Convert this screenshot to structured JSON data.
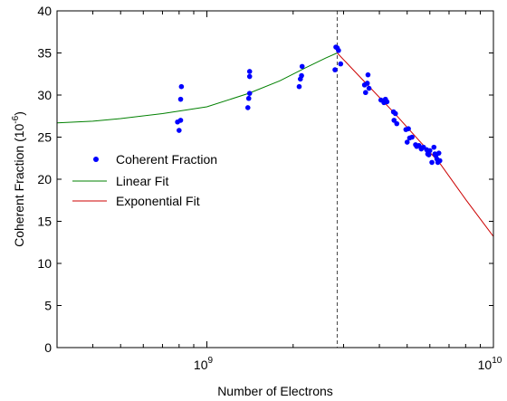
{
  "chart_data": {
    "type": "scatter",
    "xlabel": "Number of Electrons",
    "ylabel_prefix": "Coherent Fraction  (10",
    "ylabel_exp": "-6",
    "ylabel_suffix": ")",
    "x_scale": "log",
    "xlim": [
      300000000,
      10000000000
    ],
    "ylim": [
      0,
      40
    ],
    "grid": false,
    "x_ticks": [
      {
        "value": 1000000000,
        "base": "10",
        "exp": "9"
      },
      {
        "value": 10000000000,
        "base": "10",
        "exp": "10"
      }
    ],
    "y_ticks": [
      0,
      5,
      10,
      15,
      20,
      25,
      30,
      35,
      40
    ],
    "threshold_line": {
      "x": 2850000000,
      "style": "dashed"
    },
    "legend": {
      "position": "center-left",
      "entries": [
        {
          "label": "Coherent Fraction",
          "marker": "dot"
        },
        {
          "label": "Linear Fit",
          "marker": "line"
        },
        {
          "label": "Exponential Fit",
          "marker": "line"
        }
      ]
    },
    "series": [
      {
        "name": "Coherent Fraction",
        "kind": "points",
        "color": "#0000ff",
        "points": [
          [
            790000000,
            26.8
          ],
          [
            800000000,
            25.8
          ],
          [
            810000000,
            27.0
          ],
          [
            810000000,
            29.5
          ],
          [
            815000000,
            31.0
          ],
          [
            1390000000,
            28.5
          ],
          [
            1400000000,
            29.6
          ],
          [
            1410000000,
            30.2
          ],
          [
            1410000000,
            32.2
          ],
          [
            1410000000,
            32.8
          ],
          [
            2100000000,
            31.0
          ],
          [
            2120000000,
            31.9
          ],
          [
            2140000000,
            32.3
          ],
          [
            2150000000,
            33.4
          ],
          [
            2800000000,
            33.0
          ],
          [
            2820000000,
            35.7
          ],
          [
            2850000000,
            35.6
          ],
          [
            2880000000,
            35.3
          ],
          [
            2930000000,
            33.7
          ],
          [
            3550000000,
            31.2
          ],
          [
            3580000000,
            30.3
          ],
          [
            3630000000,
            31.4
          ],
          [
            3650000000,
            32.4
          ],
          [
            3680000000,
            30.8
          ],
          [
            4050000000,
            29.4
          ],
          [
            4150000000,
            29.1
          ],
          [
            4200000000,
            29.5
          ],
          [
            4250000000,
            29.2
          ],
          [
            4480000000,
            28.0
          ],
          [
            4500000000,
            27.0
          ],
          [
            4550000000,
            27.8
          ],
          [
            4600000000,
            26.6
          ],
          [
            4950000000,
            25.9
          ],
          [
            5000000000,
            24.4
          ],
          [
            5050000000,
            26.0
          ],
          [
            5100000000,
            24.9
          ],
          [
            5200000000,
            25.0
          ],
          [
            5350000000,
            24.1
          ],
          [
            5400000000,
            23.9
          ],
          [
            5500000000,
            24.0
          ],
          [
            5600000000,
            23.6
          ],
          [
            5700000000,
            23.8
          ],
          [
            5850000000,
            23.5
          ],
          [
            5900000000,
            23.0
          ],
          [
            5950000000,
            22.9
          ],
          [
            6000000000,
            23.4
          ],
          [
            6100000000,
            22.0
          ],
          [
            6200000000,
            23.8
          ],
          [
            6250000000,
            23.0
          ],
          [
            6300000000,
            22.8
          ],
          [
            6350000000,
            22.4
          ],
          [
            6400000000,
            22.0
          ],
          [
            6450000000,
            23.1
          ],
          [
            6500000000,
            22.2
          ]
        ]
      },
      {
        "name": "Linear Fit",
        "kind": "line",
        "color": "#008000",
        "x": [
          300000000,
          400000000,
          500000000,
          700000000,
          1000000000,
          1400000000,
          1800000000,
          2200000000,
          2600000000,
          2850000000
        ],
        "y": [
          26.7,
          26.9,
          27.2,
          27.8,
          28.6,
          30.2,
          31.7,
          33.2,
          34.4,
          35.0
        ]
      },
      {
        "name": "Exponential Fit",
        "kind": "line",
        "color": "#cc0000",
        "x": [
          2850000000,
          3500000000,
          4500000000,
          5500000000,
          6500000000,
          8000000000,
          10000000000
        ],
        "y": [
          35.0,
          31.8,
          27.9,
          24.6,
          21.9,
          17.6,
          13.2
        ]
      }
    ]
  }
}
